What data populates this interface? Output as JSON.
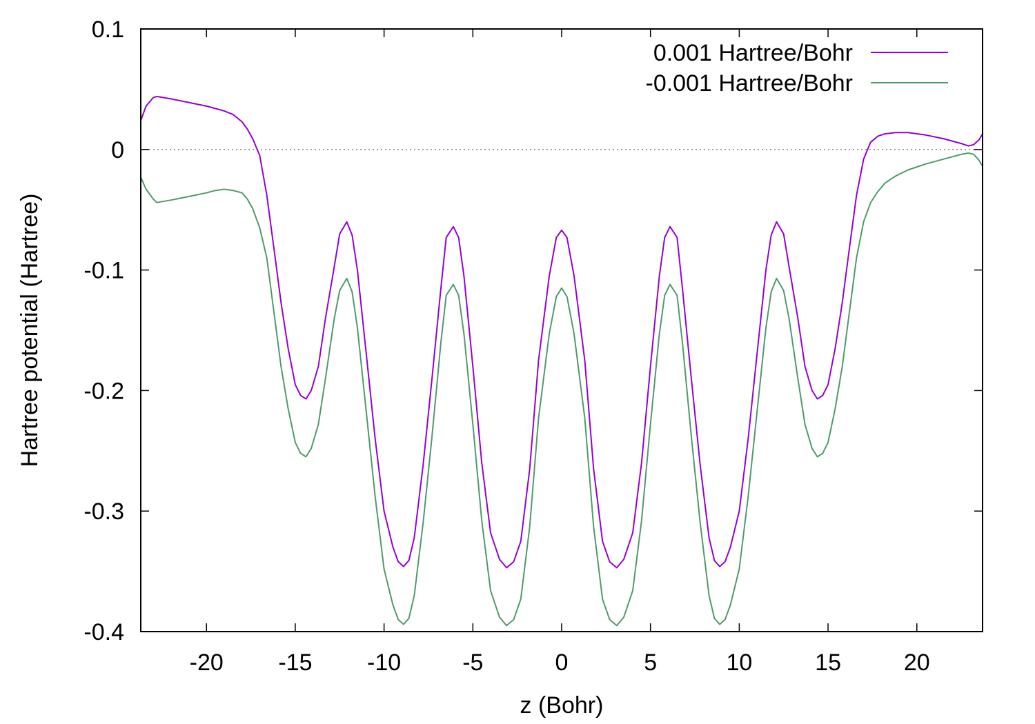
{
  "chart_data": {
    "type": "line",
    "title": "",
    "xlabel": "z (Bohr)",
    "ylabel": "Hartree potential (Hartree)",
    "xlim": [
      -23.7,
      23.7
    ],
    "ylim": [
      -0.4,
      0.1
    ],
    "xticks": [
      -20,
      -15,
      -10,
      -5,
      0,
      5,
      10,
      15,
      20
    ],
    "xtick_labels": [
      "-20",
      "-15",
      "-10",
      "-5",
      "0",
      "5",
      "10",
      "15",
      "20"
    ],
    "yticks": [
      0.1,
      0,
      -0.1,
      -0.2,
      -0.3,
      -0.4
    ],
    "ytick_labels": [
      "0.1",
      "0",
      "-0.1",
      "-0.2",
      "-0.3",
      "-0.4"
    ],
    "zero_line": true,
    "grid": false,
    "legend_position": "top-right",
    "series": [
      {
        "name": "0.001 Hartree/Bohr",
        "color": "#9400d3",
        "points": [
          [
            -23.7,
            0.024
          ],
          [
            -23.4,
            0.036
          ],
          [
            -23.0,
            0.043
          ],
          [
            -22.8,
            0.044
          ],
          [
            -22.0,
            0.042
          ],
          [
            -21.0,
            0.039
          ],
          [
            -20.0,
            0.036
          ],
          [
            -19.0,
            0.032
          ],
          [
            -18.5,
            0.029
          ],
          [
            -18.0,
            0.023
          ],
          [
            -17.7,
            0.017
          ],
          [
            -17.4,
            0.009
          ],
          [
            -17.0,
            -0.005
          ],
          [
            -16.6,
            -0.038
          ],
          [
            -16.2,
            -0.082
          ],
          [
            -15.8,
            -0.127
          ],
          [
            -15.4,
            -0.165
          ],
          [
            -15.0,
            -0.195
          ],
          [
            -14.7,
            -0.204
          ],
          [
            -14.4,
            -0.207
          ],
          [
            -14.1,
            -0.2
          ],
          [
            -13.7,
            -0.18
          ],
          [
            -13.3,
            -0.14
          ],
          [
            -12.8,
            -0.097
          ],
          [
            -12.5,
            -0.07
          ],
          [
            -12.1,
            -0.06
          ],
          [
            -11.8,
            -0.071
          ],
          [
            -11.5,
            -0.1
          ],
          [
            -11.0,
            -0.17
          ],
          [
            -10.5,
            -0.24
          ],
          [
            -10.0,
            -0.3
          ],
          [
            -9.5,
            -0.33
          ],
          [
            -9.2,
            -0.342
          ],
          [
            -8.9,
            -0.346
          ],
          [
            -8.6,
            -0.341
          ],
          [
            -8.3,
            -0.322
          ],
          [
            -7.8,
            -0.262
          ],
          [
            -7.3,
            -0.19
          ],
          [
            -6.8,
            -0.115
          ],
          [
            -6.5,
            -0.073
          ],
          [
            -6.1,
            -0.064
          ],
          [
            -5.8,
            -0.073
          ],
          [
            -5.5,
            -0.105
          ],
          [
            -5.0,
            -0.18
          ],
          [
            -4.5,
            -0.26
          ],
          [
            -4.0,
            -0.318
          ],
          [
            -3.5,
            -0.34
          ],
          [
            -3.1,
            -0.347
          ],
          [
            -2.7,
            -0.342
          ],
          [
            -2.3,
            -0.325
          ],
          [
            -1.8,
            -0.265
          ],
          [
            -1.3,
            -0.175
          ],
          [
            -0.7,
            -0.105
          ],
          [
            -0.3,
            -0.073
          ],
          [
            0.0,
            -0.067
          ],
          [
            0.3,
            -0.073
          ],
          [
            0.7,
            -0.105
          ],
          [
            1.3,
            -0.175
          ],
          [
            1.8,
            -0.265
          ],
          [
            2.3,
            -0.325
          ],
          [
            2.7,
            -0.342
          ],
          [
            3.1,
            -0.347
          ],
          [
            3.5,
            -0.34
          ],
          [
            4.0,
            -0.318
          ],
          [
            4.5,
            -0.26
          ],
          [
            5.0,
            -0.18
          ],
          [
            5.5,
            -0.105
          ],
          [
            5.8,
            -0.073
          ],
          [
            6.1,
            -0.064
          ],
          [
            6.5,
            -0.073
          ],
          [
            6.8,
            -0.115
          ],
          [
            7.3,
            -0.19
          ],
          [
            7.8,
            -0.262
          ],
          [
            8.3,
            -0.322
          ],
          [
            8.6,
            -0.341
          ],
          [
            8.9,
            -0.346
          ],
          [
            9.2,
            -0.342
          ],
          [
            9.5,
            -0.33
          ],
          [
            10.0,
            -0.3
          ],
          [
            10.5,
            -0.24
          ],
          [
            11.0,
            -0.17
          ],
          [
            11.5,
            -0.1
          ],
          [
            11.8,
            -0.071
          ],
          [
            12.1,
            -0.06
          ],
          [
            12.5,
            -0.07
          ],
          [
            12.8,
            -0.097
          ],
          [
            13.3,
            -0.14
          ],
          [
            13.7,
            -0.18
          ],
          [
            14.1,
            -0.2
          ],
          [
            14.4,
            -0.207
          ],
          [
            14.7,
            -0.204
          ],
          [
            15.0,
            -0.195
          ],
          [
            15.4,
            -0.165
          ],
          [
            15.8,
            -0.127
          ],
          [
            16.2,
            -0.082
          ],
          [
            16.6,
            -0.038
          ],
          [
            17.0,
            -0.008
          ],
          [
            17.4,
            0.006
          ],
          [
            17.8,
            0.011
          ],
          [
            18.2,
            0.013
          ],
          [
            18.8,
            0.014
          ],
          [
            19.5,
            0.014
          ],
          [
            20.5,
            0.012
          ],
          [
            21.5,
            0.009
          ],
          [
            22.5,
            0.005
          ],
          [
            22.9,
            0.003
          ],
          [
            23.2,
            0.004
          ],
          [
            23.5,
            0.008
          ],
          [
            23.7,
            0.013
          ]
        ]
      },
      {
        "name": "-0.001 Hartree/Bohr",
        "color": "#4f9a6a",
        "points": [
          [
            -23.7,
            -0.023
          ],
          [
            -23.4,
            -0.033
          ],
          [
            -23.0,
            -0.041
          ],
          [
            -22.8,
            -0.044
          ],
          [
            -22.0,
            -0.042
          ],
          [
            -21.0,
            -0.039
          ],
          [
            -20.0,
            -0.036
          ],
          [
            -19.5,
            -0.034
          ],
          [
            -19.0,
            -0.033
          ],
          [
            -18.5,
            -0.034
          ],
          [
            -18.0,
            -0.036
          ],
          [
            -17.7,
            -0.041
          ],
          [
            -17.4,
            -0.049
          ],
          [
            -17.0,
            -0.065
          ],
          [
            -16.6,
            -0.09
          ],
          [
            -16.2,
            -0.135
          ],
          [
            -15.8,
            -0.18
          ],
          [
            -15.4,
            -0.215
          ],
          [
            -15.0,
            -0.243
          ],
          [
            -14.7,
            -0.252
          ],
          [
            -14.4,
            -0.255
          ],
          [
            -14.1,
            -0.248
          ],
          [
            -13.7,
            -0.228
          ],
          [
            -13.3,
            -0.19
          ],
          [
            -12.8,
            -0.14
          ],
          [
            -12.5,
            -0.117
          ],
          [
            -12.1,
            -0.107
          ],
          [
            -11.8,
            -0.118
          ],
          [
            -11.5,
            -0.148
          ],
          [
            -11.0,
            -0.218
          ],
          [
            -10.5,
            -0.288
          ],
          [
            -10.0,
            -0.348
          ],
          [
            -9.5,
            -0.378
          ],
          [
            -9.2,
            -0.39
          ],
          [
            -8.9,
            -0.394
          ],
          [
            -8.6,
            -0.389
          ],
          [
            -8.3,
            -0.37
          ],
          [
            -7.8,
            -0.31
          ],
          [
            -7.3,
            -0.238
          ],
          [
            -6.8,
            -0.16
          ],
          [
            -6.5,
            -0.121
          ],
          [
            -6.1,
            -0.112
          ],
          [
            -5.8,
            -0.121
          ],
          [
            -5.5,
            -0.153
          ],
          [
            -5.0,
            -0.228
          ],
          [
            -4.5,
            -0.308
          ],
          [
            -4.0,
            -0.366
          ],
          [
            -3.5,
            -0.388
          ],
          [
            -3.1,
            -0.395
          ],
          [
            -2.7,
            -0.39
          ],
          [
            -2.3,
            -0.373
          ],
          [
            -1.8,
            -0.313
          ],
          [
            -1.3,
            -0.223
          ],
          [
            -0.7,
            -0.153
          ],
          [
            -0.3,
            -0.122
          ],
          [
            0.0,
            -0.115
          ],
          [
            0.3,
            -0.122
          ],
          [
            0.7,
            -0.153
          ],
          [
            1.3,
            -0.223
          ],
          [
            1.8,
            -0.313
          ],
          [
            2.3,
            -0.373
          ],
          [
            2.7,
            -0.39
          ],
          [
            3.1,
            -0.395
          ],
          [
            3.5,
            -0.388
          ],
          [
            4.0,
            -0.366
          ],
          [
            4.5,
            -0.308
          ],
          [
            5.0,
            -0.228
          ],
          [
            5.5,
            -0.153
          ],
          [
            5.8,
            -0.121
          ],
          [
            6.1,
            -0.112
          ],
          [
            6.5,
            -0.121
          ],
          [
            6.8,
            -0.16
          ],
          [
            7.3,
            -0.238
          ],
          [
            7.8,
            -0.31
          ],
          [
            8.3,
            -0.37
          ],
          [
            8.6,
            -0.389
          ],
          [
            8.9,
            -0.394
          ],
          [
            9.2,
            -0.39
          ],
          [
            9.5,
            -0.378
          ],
          [
            10.0,
            -0.348
          ],
          [
            10.5,
            -0.288
          ],
          [
            11.0,
            -0.218
          ],
          [
            11.5,
            -0.148
          ],
          [
            11.8,
            -0.118
          ],
          [
            12.1,
            -0.107
          ],
          [
            12.5,
            -0.117
          ],
          [
            12.8,
            -0.14
          ],
          [
            13.3,
            -0.19
          ],
          [
            13.7,
            -0.228
          ],
          [
            14.1,
            -0.248
          ],
          [
            14.4,
            -0.255
          ],
          [
            14.7,
            -0.252
          ],
          [
            15.0,
            -0.243
          ],
          [
            15.4,
            -0.215
          ],
          [
            15.8,
            -0.18
          ],
          [
            16.2,
            -0.135
          ],
          [
            16.6,
            -0.09
          ],
          [
            17.0,
            -0.06
          ],
          [
            17.4,
            -0.044
          ],
          [
            17.8,
            -0.035
          ],
          [
            18.2,
            -0.028
          ],
          [
            18.8,
            -0.022
          ],
          [
            19.5,
            -0.017
          ],
          [
            20.5,
            -0.012
          ],
          [
            21.5,
            -0.008
          ],
          [
            22.5,
            -0.004
          ],
          [
            22.9,
            -0.003
          ],
          [
            23.2,
            -0.004
          ],
          [
            23.5,
            -0.009
          ],
          [
            23.7,
            -0.014
          ]
        ]
      }
    ]
  }
}
